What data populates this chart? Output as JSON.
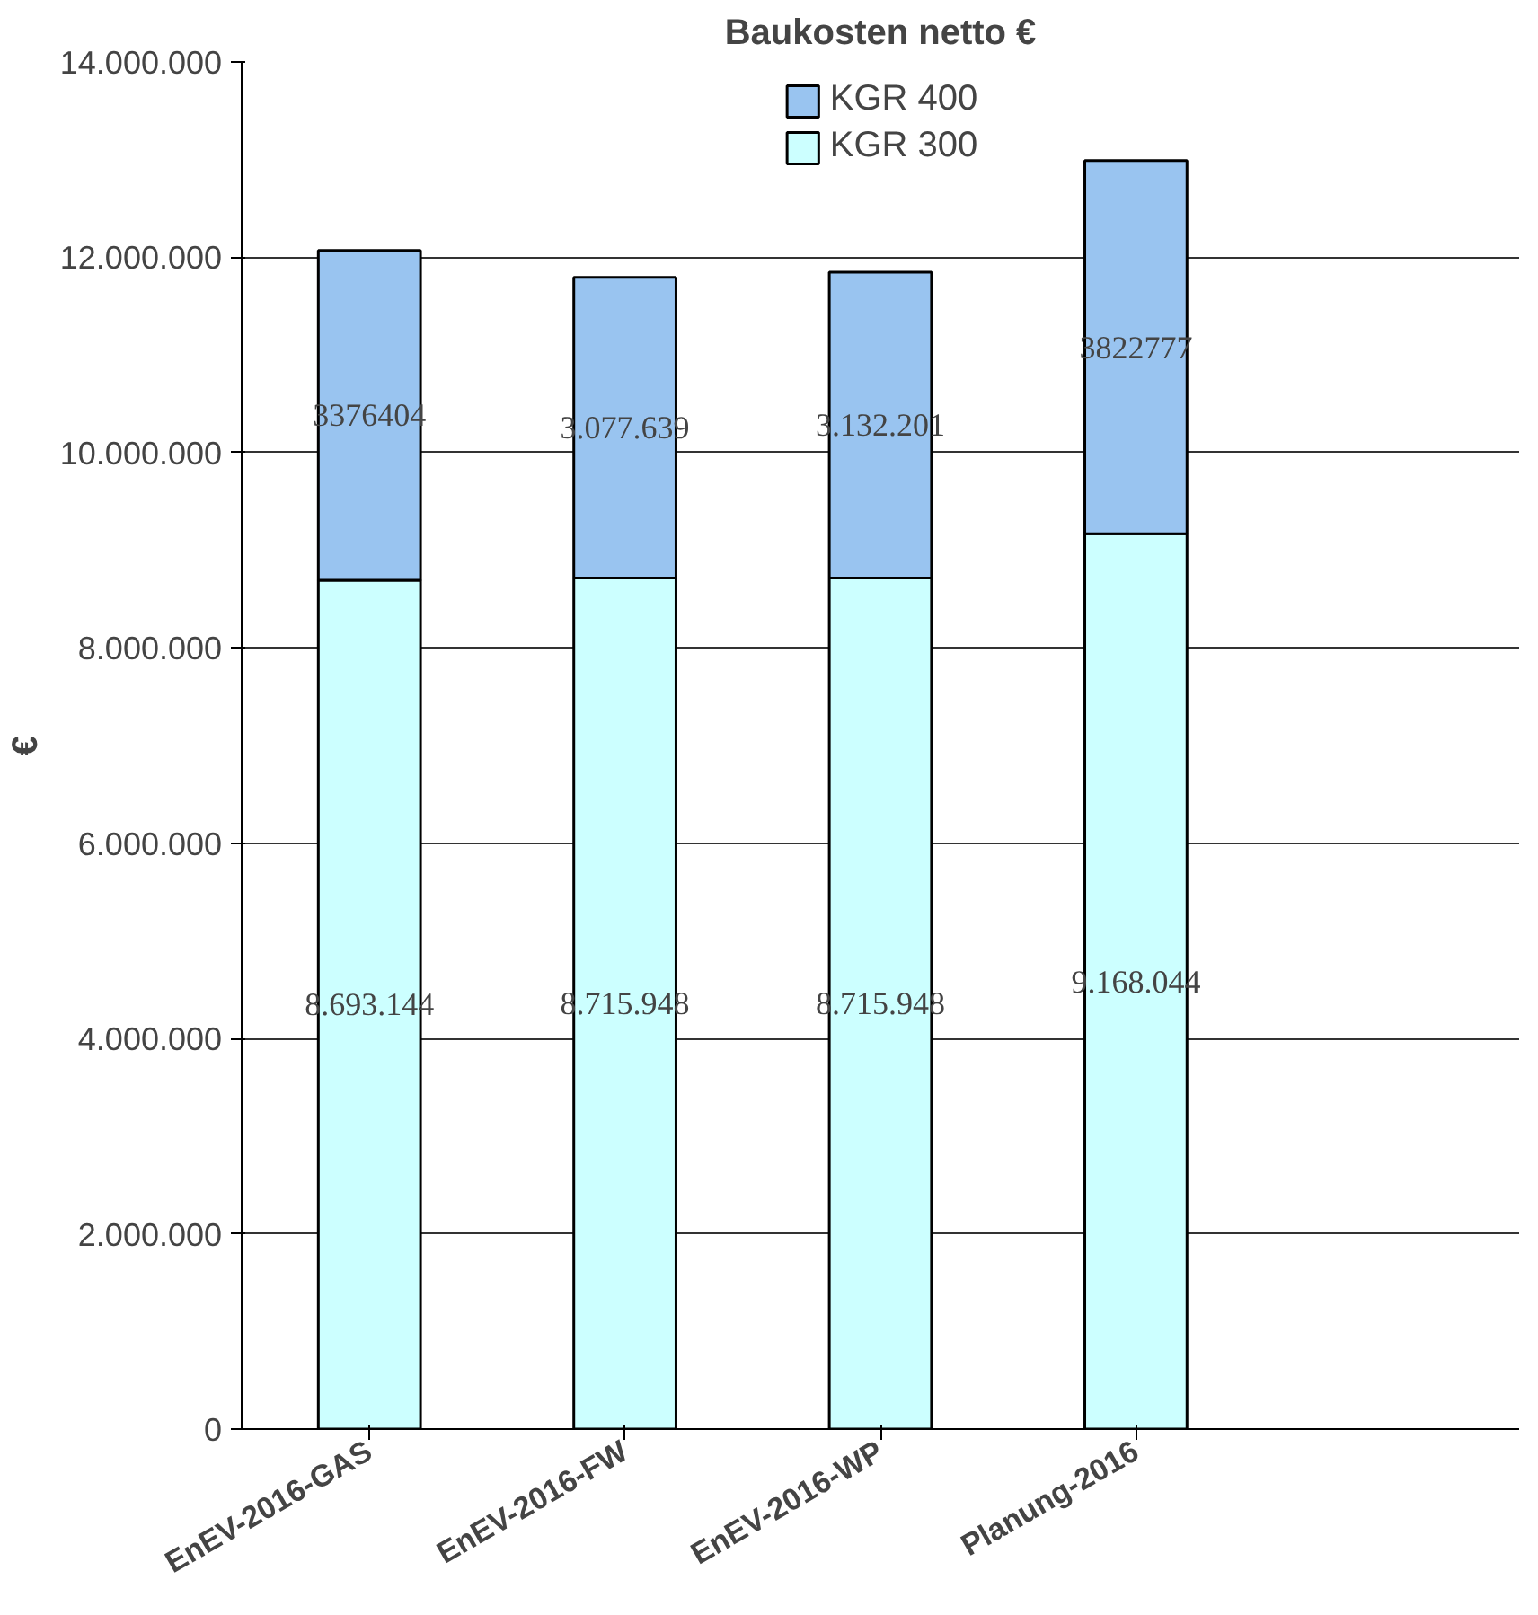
{
  "chart_data": {
    "type": "bar",
    "stacked": true,
    "title": "Baukosten netto €",
    "ylabel": "€",
    "categories": [
      "EnEV-2016-GAS",
      "EnEV-2016-FW",
      "EnEV-2016-WP",
      "Planung-2016"
    ],
    "series": [
      {
        "name": "KGR 300",
        "color": "#ccffff",
        "values": [
          8693144,
          8715948,
          8715948,
          9168044
        ],
        "value_labels": [
          "8.693.144",
          "8.715.948",
          "8.715.948",
          "9.168.044"
        ]
      },
      {
        "name": "KGR 400",
        "color": "#99c4f0",
        "values": [
          3376404,
          3077639,
          3132201,
          3822777
        ],
        "value_labels": [
          "3376404",
          "3.077.639",
          "3.132.201",
          "3822777"
        ]
      }
    ],
    "ylim": [
      0,
      14000000
    ],
    "yticks": [
      {
        "value": 0,
        "label": "0"
      },
      {
        "value": 2000000,
        "label": "2.000.000"
      },
      {
        "value": 4000000,
        "label": "4.000.000"
      },
      {
        "value": 6000000,
        "label": "6.000.000"
      },
      {
        "value": 8000000,
        "label": "8.000.000"
      },
      {
        "value": 10000000,
        "label": "10.000.000"
      },
      {
        "value": 12000000,
        "label": "12.000.000"
      },
      {
        "value": 14000000,
        "label": "14.000.000"
      }
    ],
    "grid": "y",
    "legend": "top"
  }
}
